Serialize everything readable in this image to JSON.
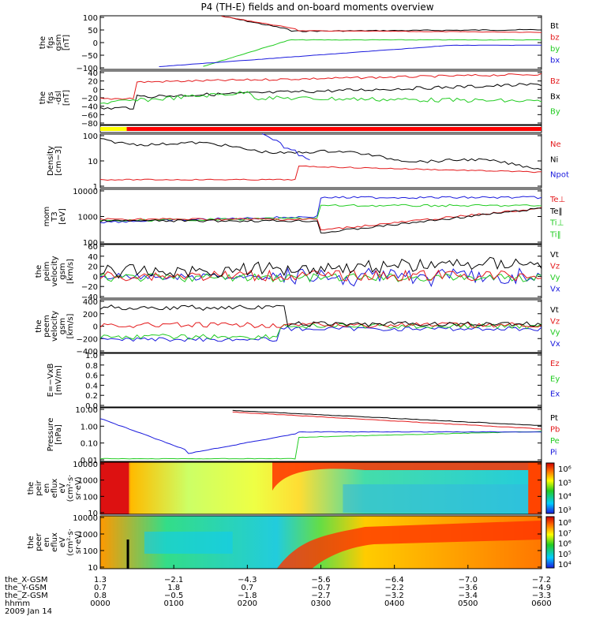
{
  "title": "P4 (TH-E) fields and on-board moments overview",
  "colors": {
    "black": "#000000",
    "red": "#e41a1c",
    "green": "#22cc22",
    "blue": "#1a1add",
    "yellow": "#ffff00"
  },
  "chart_data": [
    {
      "type": "line",
      "ylabel": [
        "the",
        "fgs",
        "gsm",
        "[nT]"
      ],
      "ylim": [
        -100,
        100
      ],
      "ticks": [
        "100",
        "50",
        "0",
        "−50",
        "−100"
      ],
      "legend": [
        {
          "name": "Bt",
          "color": "black"
        },
        {
          "name": "bz",
          "color": "red"
        },
        {
          "name": "by",
          "color": "green"
        },
        {
          "name": "bx",
          "color": "blue"
        }
      ]
    },
    {
      "type": "line",
      "ylabel": [
        "the",
        "fgs",
        "-dsl",
        "[nT]"
      ],
      "ylim": [
        -80,
        40
      ],
      "ticks": [
        "40",
        "20",
        "0",
        "−20",
        "−40",
        "−60",
        "−80"
      ],
      "legend": [
        {
          "name": "Bz",
          "color": "red"
        },
        {
          "name": "Bx",
          "color": "black"
        },
        {
          "name": "By",
          "color": "green"
        }
      ]
    },
    {
      "type": "bar",
      "ylabel": [],
      "legend": []
    },
    {
      "type": "line",
      "ylabel": [
        "Density",
        "[cm−3]"
      ],
      "log": true,
      "ylim": [
        0.3,
        150
      ],
      "ticks": [
        "100",
        "10",
        "1"
      ],
      "legend": [
        {
          "name": "Ne",
          "color": "red"
        },
        {
          "name": "Ni",
          "color": "black"
        },
        {
          "name": "Npot",
          "color": "blue"
        }
      ]
    },
    {
      "type": "line",
      "ylabel": [
        "mom",
        "T3",
        "[eV]"
      ],
      "log": true,
      "ylim": [
        30,
        20000
      ],
      "ticks": [
        "10000",
        "1000",
        "100"
      ],
      "legend": [
        {
          "name": "Te⊥",
          "color": "red"
        },
        {
          "name": "Te‖",
          "color": "black"
        },
        {
          "name": "Ti⊥",
          "color": "green"
        },
        {
          "name": "Ti‖",
          "color": "green"
        }
      ]
    },
    {
      "type": "line",
      "ylabel": [
        "the",
        "peim",
        "velocity",
        "gsm",
        "[km/s]"
      ],
      "ylim": [
        -40,
        60
      ],
      "ticks": [
        "60",
        "40",
        "20",
        "0",
        "−20",
        "−40"
      ],
      "legend": [
        {
          "name": "Vt",
          "color": "black"
        },
        {
          "name": "Vz",
          "color": "red"
        },
        {
          "name": "Vy",
          "color": "green"
        },
        {
          "name": "Vx",
          "color": "blue"
        }
      ]
    },
    {
      "type": "line",
      "ylabel": [
        "the",
        "peem",
        "velocity",
        "gsm",
        "[km/s]"
      ],
      "ylim": [
        -400,
        400
      ],
      "ticks": [
        "400",
        "200",
        "0",
        "−200",
        "−400"
      ],
      "legend": [
        {
          "name": "Vt",
          "color": "black"
        },
        {
          "name": "Vz",
          "color": "red"
        },
        {
          "name": "Vy",
          "color": "green"
        },
        {
          "name": "Vx",
          "color": "blue"
        }
      ]
    },
    {
      "type": "line",
      "ylabel": [
        "E=−VxB",
        "[mV/m]"
      ],
      "ylim": [
        0,
        1
      ],
      "ticks": [
        "1.0",
        "0.8",
        "0.6",
        "0.4",
        "0.2",
        "0.0"
      ],
      "legend": [
        {
          "name": "Ez",
          "color": "red"
        },
        {
          "name": "Ey",
          "color": "green"
        },
        {
          "name": "Ex",
          "color": "blue"
        }
      ]
    },
    {
      "type": "line",
      "ylabel": [
        "Pressure",
        "[nPa]"
      ],
      "log": true,
      "ylim": [
        0.01,
        20
      ],
      "ticks": [
        "10.00",
        "1.00",
        "0.10",
        "0.01"
      ],
      "legend": [
        {
          "name": "Pt",
          "color": "black"
        },
        {
          "name": "Pb",
          "color": "red"
        },
        {
          "name": "Pe",
          "color": "green"
        },
        {
          "name": "Pi",
          "color": "blue"
        }
      ]
    },
    {
      "type": "heatmap",
      "ylabel": [
        "the",
        "peir",
        "en",
        "eflux",
        "eV",
        "(cm²·s·",
        "sr·eV)"
      ],
      "log": true,
      "ylim": [
        10,
        10000
      ],
      "ticks": [
        "10000",
        "1000",
        "100",
        "10"
      ],
      "colorbar": [
        "10⁶",
        "10⁵",
        "10⁴",
        "10³"
      ]
    },
    {
      "type": "heatmap",
      "ylabel": [
        "the",
        "peer",
        "en",
        "eflux",
        "eV",
        "(cm²·s·",
        "sr·eV)"
      ],
      "log": true,
      "ylim": [
        10,
        10000
      ],
      "ticks": [
        "10000",
        "1000",
        "100",
        "10"
      ],
      "colorbar": [
        "10⁸",
        "10⁷",
        "10⁶",
        "10⁵",
        "10⁴"
      ]
    }
  ],
  "xaxis": {
    "labels": [
      "the_X-GSM",
      "the_Y-GSM",
      "the_Z-GSM",
      "hhmm",
      "2009 Jan 14"
    ],
    "ticks": [
      {
        "x": "1.3",
        "y": "0.7",
        "z": "0.8",
        "t": "0000"
      },
      {
        "x": "−2.1",
        "y": "1.8",
        "z": "−0.5",
        "t": "0100"
      },
      {
        "x": "−4.3",
        "y": "0.7",
        "z": "−1.8",
        "t": "0200"
      },
      {
        "x": "−5.6",
        "y": "−0.7",
        "z": "−2.7",
        "t": "0300"
      },
      {
        "x": "−6.4",
        "y": "−2.2",
        "z": "−3.2",
        "t": "0400"
      },
      {
        "x": "−7.0",
        "y": "−3.6",
        "z": "−3.4",
        "t": "0500"
      },
      {
        "x": "−7.2",
        "y": "−4.9",
        "z": "−3.3",
        "t": "0600"
      }
    ]
  }
}
